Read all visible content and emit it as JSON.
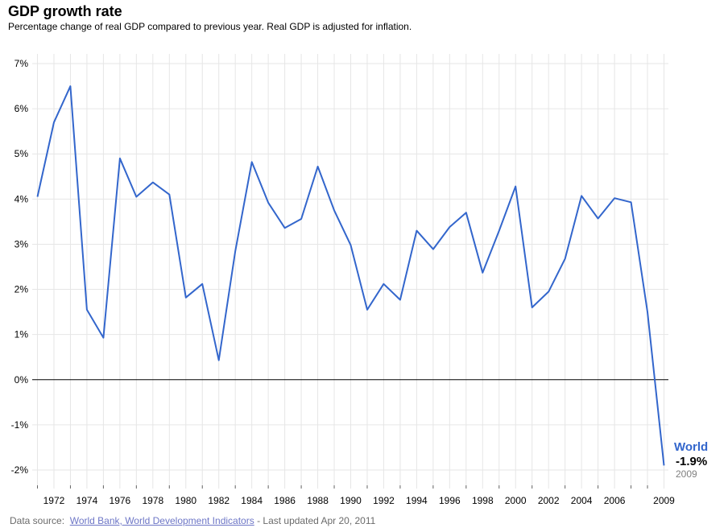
{
  "header": {
    "title": "GDP growth rate",
    "subtitle": "Percentage change of real GDP compared to previous year. Real GDP is adjusted for inflation."
  },
  "footer": {
    "prefix": "Data source:",
    "link_text": "World Bank, World Development Indicators",
    "suffix": "- Last updated Apr 20, 2011"
  },
  "series_label": {
    "name": "World",
    "value": "-1.9%",
    "year": "2009"
  },
  "colors": {
    "line": "#3366cc",
    "grid": "#e6e6e6",
    "zero_line": "#000000",
    "link": "#6d76c6"
  },
  "chart_data": {
    "type": "line",
    "title": "GDP growth rate",
    "subtitle": "Percentage change of real GDP compared to previous year. Real GDP is adjusted for inflation.",
    "xlabel": "",
    "ylabel": "",
    "xlim": [
      1971,
      2009
    ],
    "ylim": [
      -2,
      7
    ],
    "y_ticks": [
      -2,
      -1,
      0,
      1,
      2,
      3,
      4,
      5,
      6,
      7
    ],
    "y_tick_labels": [
      "-2%",
      "-1%",
      "0%",
      "1%",
      "2%",
      "3%",
      "4%",
      "5%",
      "6%",
      "7%"
    ],
    "x_ticks": [
      1972,
      1974,
      1976,
      1978,
      1980,
      1982,
      1984,
      1986,
      1988,
      1990,
      1992,
      1994,
      1996,
      1998,
      2000,
      2002,
      2004,
      2006,
      2009
    ],
    "x_tick_labels": [
      "1972",
      "1974",
      "1976",
      "1978",
      "1980",
      "1982",
      "1984",
      "1986",
      "1988",
      "1990",
      "1992",
      "1994",
      "1996",
      "1998",
      "2000",
      "2002",
      "2004",
      "2006",
      "2009"
    ],
    "grid": true,
    "series": [
      {
        "name": "World",
        "x": [
          1971,
          1972,
          1973,
          1974,
          1975,
          1976,
          1977,
          1978,
          1979,
          1980,
          1981,
          1982,
          1983,
          1984,
          1985,
          1986,
          1987,
          1988,
          1989,
          1990,
          1991,
          1992,
          1993,
          1994,
          1995,
          1996,
          1997,
          1998,
          1999,
          2000,
          2001,
          2002,
          2003,
          2004,
          2005,
          2006,
          2007,
          2008,
          2009
        ],
        "values": [
          4.05,
          5.7,
          6.5,
          1.55,
          0.93,
          4.9,
          4.05,
          4.37,
          4.1,
          1.82,
          2.12,
          0.43,
          2.85,
          4.82,
          3.92,
          3.36,
          3.56,
          4.72,
          3.75,
          2.98,
          1.55,
          2.12,
          1.77,
          3.3,
          2.89,
          3.38,
          3.7,
          2.37,
          3.3,
          4.28,
          1.6,
          1.95,
          2.68,
          4.07,
          3.57,
          4.02,
          3.93,
          1.5,
          -1.9
        ]
      }
    ]
  }
}
